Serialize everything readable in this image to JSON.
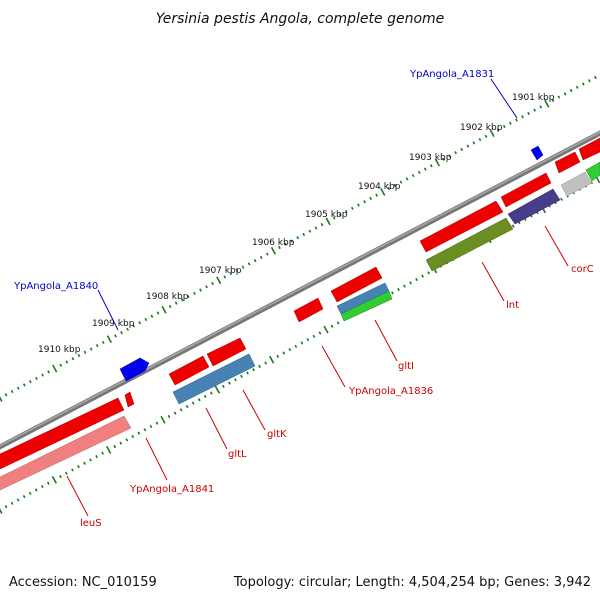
{
  "title": "Yersinia pestis Angola, complete genome",
  "footer": {
    "accession": "Accession: NC_010159",
    "topology": "Topology: circular; Length: 4,504,254 bp; Genes: 3,942"
  },
  "colors": {
    "backbone": "#808080",
    "tick": "#1a7a1a",
    "label_blue": "#0000cc",
    "label_red": "#cc0000",
    "feature_red": "#ee0000",
    "feature_blue": "#0000ee",
    "feature_pink": "#f08080",
    "feature_steel": "#4682b4",
    "feature_green": "#33cc33",
    "feature_olive": "#6b8e23",
    "feature_navy": "#483d8b",
    "feature_gray": "#c0c0c0"
  },
  "tick_labels": [
    "1901 kbp",
    "1902 kbp",
    "1903 kbp",
    "1904 kbp",
    "1905 kbp",
    "1906 kbp",
    "1907 kbp",
    "1908 kbp",
    "1909 kbp",
    "1910 kbp"
  ],
  "gene_labels": [
    "YpAngola_A1831",
    "YpAngola_A1840",
    "corC",
    "lnt",
    "gltI",
    "YpAngola_A1836",
    "gltK",
    "gltL",
    "YpAngola_A1841",
    "leuS"
  ]
}
